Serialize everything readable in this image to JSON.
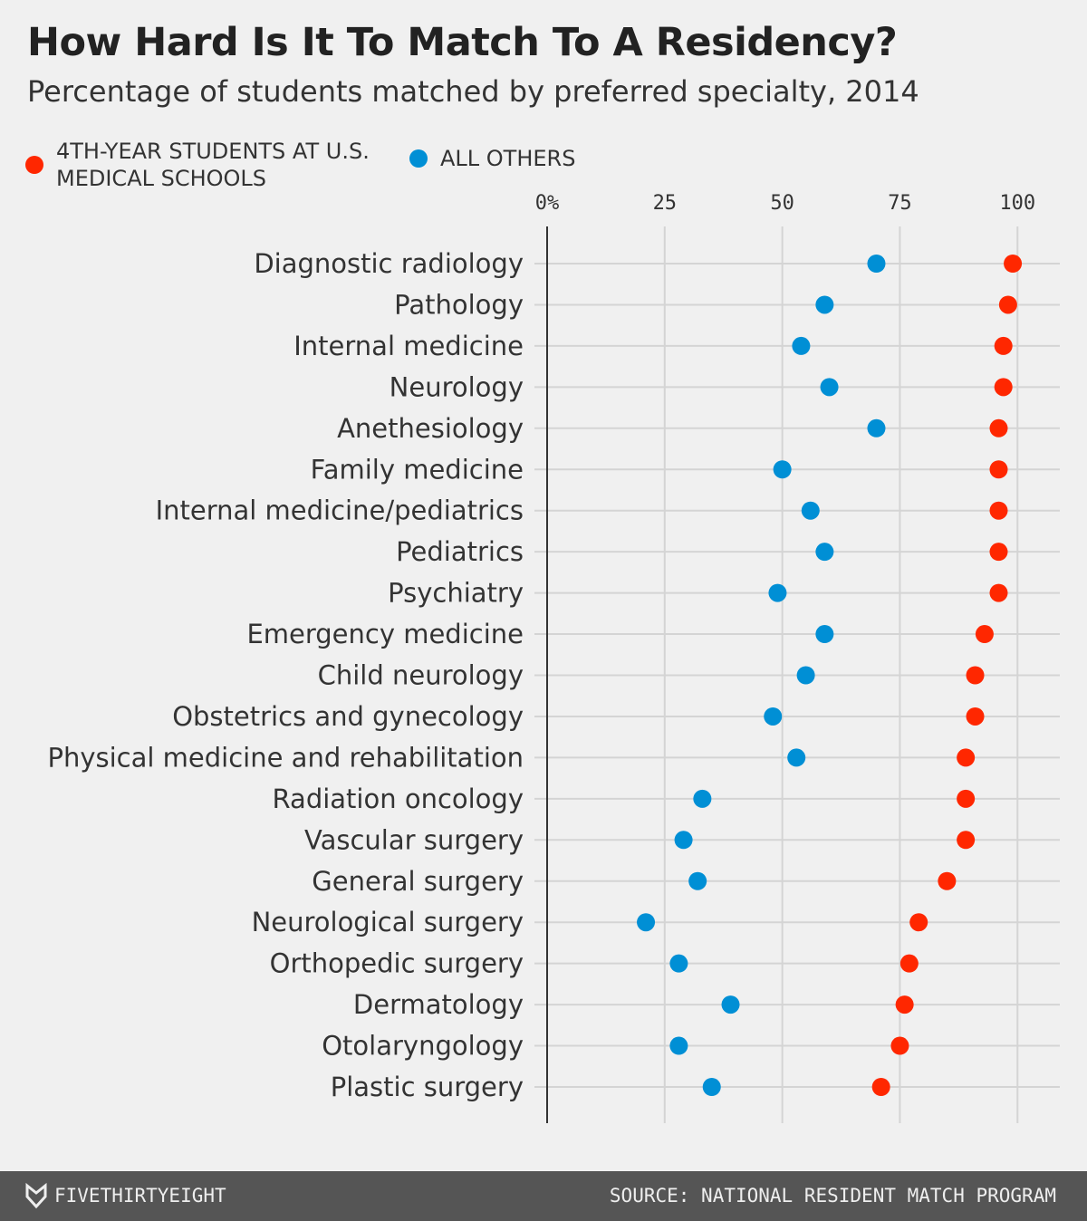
{
  "chart_data": {
    "type": "dot",
    "title": "How Hard Is It To Match To A Residency?",
    "subtitle": "Percentage of students matched by preferred specialty, 2014",
    "categories": [
      "Diagnostic radiology",
      "Pathology",
      "Internal medicine",
      "Neurology",
      "Anethesiology",
      "Family medicine",
      "Internal medicine/pediatrics",
      "Pediatrics",
      "Psychiatry",
      "Emergency medicine",
      "Child neurology",
      "Obstetrics and gynecology",
      "Physical medicine and rehabilitation",
      "Radiation oncology",
      "Vascular surgery",
      "General surgery",
      "Neurological surgery",
      "Orthopedic surgery",
      "Dermatology",
      "Otolaryngology",
      "Plastic surgery"
    ],
    "series": [
      {
        "name": "4TH-YEAR STUDENTS AT U.S. MEDICAL SCHOOLS",
        "color": "#ff2700",
        "values": [
          99,
          98,
          97,
          97,
          96,
          96,
          96,
          96,
          96,
          93,
          91,
          91,
          89,
          89,
          89,
          85,
          79,
          77,
          76,
          75,
          71
        ]
      },
      {
        "name": "ALL OTHERS",
        "color": "#008fd5",
        "values": [
          70,
          59,
          54,
          60,
          70,
          50,
          56,
          59,
          49,
          59,
          55,
          48,
          53,
          33,
          29,
          32,
          21,
          28,
          39,
          28,
          35
        ]
      }
    ],
    "xlim": [
      0,
      109
    ],
    "xticks": [
      {
        "value": 0,
        "label": "0%"
      },
      25,
      50,
      75,
      100
    ],
    "grid": true,
    "footer": {
      "brand": "FIVETHIRTYEIGHT",
      "source": "SOURCE: NATIONAL RESIDENT MATCH PROGRAM"
    }
  }
}
